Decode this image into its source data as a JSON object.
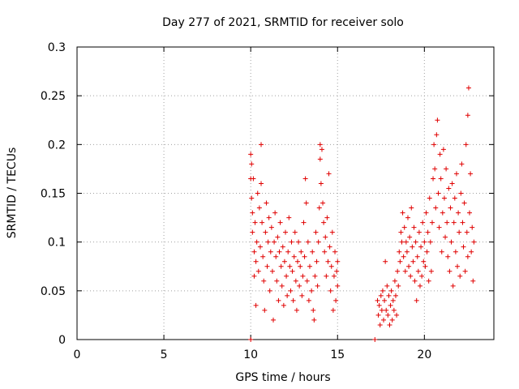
{
  "chart_data": {
    "type": "scatter",
    "title": "Day 277 of 2021, SRMTID for receiver solo",
    "xlabel": "GPS time / hours",
    "ylabel": "SRMTID / TECUs",
    "xlim": [
      0,
      24
    ],
    "ylim": [
      0,
      0.3
    ],
    "x_ticks": [
      0,
      5,
      10,
      15,
      20
    ],
    "x_tick_labels": [
      "0",
      "5",
      "10",
      "15",
      "20"
    ],
    "y_ticks": [
      0,
      0.05,
      0.1,
      0.15,
      0.2,
      0.25,
      0.3
    ],
    "y_tick_labels": [
      "0",
      "0.05",
      "0.1",
      "0.15",
      "0.2",
      "0.25",
      "0.3"
    ],
    "grid": true,
    "marker": "+",
    "series": [
      {
        "name": "SRMTID",
        "color": "#e00000",
        "points": [
          [
            10.0,
            0.0
          ],
          [
            10.0,
            0.19
          ],
          [
            10.0,
            0.165
          ],
          [
            10.05,
            0.18
          ],
          [
            10.05,
            0.145
          ],
          [
            10.1,
            0.13
          ],
          [
            10.1,
            0.11
          ],
          [
            10.15,
            0.165
          ],
          [
            10.2,
            0.09
          ],
          [
            10.2,
            0.065
          ],
          [
            10.25,
            0.12
          ],
          [
            10.3,
            0.08
          ],
          [
            10.3,
            0.035
          ],
          [
            10.35,
            0.1
          ],
          [
            10.4,
            0.15
          ],
          [
            10.45,
            0.07
          ],
          [
            10.5,
            0.135
          ],
          [
            10.55,
            0.095
          ],
          [
            10.6,
            0.2
          ],
          [
            10.6,
            0.16
          ],
          [
            10.65,
            0.12
          ],
          [
            10.7,
            0.085
          ],
          [
            10.75,
            0.06
          ],
          [
            10.8,
            0.03
          ],
          [
            10.85,
            0.11
          ],
          [
            10.9,
            0.14
          ],
          [
            10.95,
            0.075
          ],
          [
            11.0,
            0.1
          ],
          [
            11.05,
            0.125
          ],
          [
            11.1,
            0.05
          ],
          [
            11.15,
            0.09
          ],
          [
            11.2,
            0.115
          ],
          [
            11.25,
            0.07
          ],
          [
            11.3,
            0.02
          ],
          [
            11.35,
            0.1
          ],
          [
            11.4,
            0.13
          ],
          [
            11.45,
            0.085
          ],
          [
            11.5,
            0.06
          ],
          [
            11.55,
            0.105
          ],
          [
            11.6,
            0.04
          ],
          [
            11.65,
            0.09
          ],
          [
            11.7,
            0.12
          ],
          [
            11.75,
            0.075
          ],
          [
            11.8,
            0.055
          ],
          [
            11.85,
            0.095
          ],
          [
            11.9,
            0.035
          ],
          [
            11.95,
            0.08
          ],
          [
            12.0,
            0.11
          ],
          [
            12.05,
            0.065
          ],
          [
            12.1,
            0.045
          ],
          [
            12.15,
            0.09
          ],
          [
            12.2,
            0.125
          ],
          [
            12.25,
            0.075
          ],
          [
            12.3,
            0.05
          ],
          [
            12.35,
            0.1
          ],
          [
            12.4,
            0.07
          ],
          [
            12.45,
            0.04
          ],
          [
            12.5,
            0.085
          ],
          [
            12.55,
            0.11
          ],
          [
            12.6,
            0.06
          ],
          [
            12.65,
            0.03
          ],
          [
            12.7,
            0.08
          ],
          [
            12.75,
            0.1
          ],
          [
            12.8,
            0.055
          ],
          [
            12.85,
            0.075
          ],
          [
            12.9,
            0.09
          ],
          [
            12.95,
            0.045
          ],
          [
            13.0,
            0.065
          ],
          [
            13.05,
            0.12
          ],
          [
            13.1,
            0.085
          ],
          [
            13.15,
            0.165
          ],
          [
            13.2,
            0.14
          ],
          [
            13.25,
            0.06
          ],
          [
            13.3,
            0.1
          ],
          [
            13.35,
            0.04
          ],
          [
            13.4,
            0.075
          ],
          [
            13.5,
            0.05
          ],
          [
            13.55,
            0.09
          ],
          [
            13.6,
            0.03
          ],
          [
            13.65,
            0.02
          ],
          [
            13.7,
            0.065
          ],
          [
            13.75,
            0.11
          ],
          [
            13.8,
            0.08
          ],
          [
            13.85,
            0.055
          ],
          [
            13.9,
            0.1
          ],
          [
            13.95,
            0.135
          ],
          [
            14.0,
            0.185
          ],
          [
            14.0,
            0.2
          ],
          [
            14.05,
            0.16
          ],
          [
            14.1,
            0.195
          ],
          [
            14.15,
            0.14
          ],
          [
            14.2,
            0.12
          ],
          [
            14.25,
            0.09
          ],
          [
            14.3,
            0.105
          ],
          [
            14.35,
            0.065
          ],
          [
            14.4,
            0.125
          ],
          [
            14.45,
            0.08
          ],
          [
            14.5,
            0.17
          ],
          [
            14.55,
            0.095
          ],
          [
            14.6,
            0.05
          ],
          [
            14.65,
            0.075
          ],
          [
            14.7,
            0.11
          ],
          [
            14.75,
            0.03
          ],
          [
            14.8,
            0.065
          ],
          [
            14.85,
            0.09
          ],
          [
            14.9,
            0.04
          ],
          [
            14.95,
            0.07
          ],
          [
            15.0,
            0.08
          ],
          [
            15.0,
            0.055
          ],
          [
            17.15,
            0.0
          ],
          [
            17.3,
            0.04
          ],
          [
            17.35,
            0.025
          ],
          [
            17.4,
            0.035
          ],
          [
            17.45,
            0.015
          ],
          [
            17.5,
            0.045
          ],
          [
            17.55,
            0.03
          ],
          [
            17.6,
            0.05
          ],
          [
            17.65,
            0.02
          ],
          [
            17.7,
            0.04
          ],
          [
            17.75,
            0.08
          ],
          [
            17.8,
            0.03
          ],
          [
            17.85,
            0.055
          ],
          [
            17.9,
            0.025
          ],
          [
            17.95,
            0.045
          ],
          [
            18.0,
            0.015
          ],
          [
            18.05,
            0.035
          ],
          [
            18.1,
            0.05
          ],
          [
            18.15,
            0.02
          ],
          [
            18.2,
            0.04
          ],
          [
            18.25,
            0.03
          ],
          [
            18.3,
            0.06
          ],
          [
            18.35,
            0.045
          ],
          [
            18.4,
            0.025
          ],
          [
            18.45,
            0.07
          ],
          [
            18.5,
            0.055
          ],
          [
            18.55,
            0.09
          ],
          [
            18.6,
            0.08
          ],
          [
            18.65,
            0.11
          ],
          [
            18.7,
            0.1
          ],
          [
            18.75,
            0.13
          ],
          [
            18.8,
            0.085
          ],
          [
            18.85,
            0.115
          ],
          [
            18.9,
            0.07
          ],
          [
            18.95,
            0.1
          ],
          [
            19.0,
            0.09
          ],
          [
            19.05,
            0.125
          ],
          [
            19.1,
            0.075
          ],
          [
            19.15,
            0.105
          ],
          [
            19.2,
            0.065
          ],
          [
            19.25,
            0.135
          ],
          [
            19.3,
            0.095
          ],
          [
            19.35,
            0.08
          ],
          [
            19.4,
            0.115
          ],
          [
            19.45,
            0.06
          ],
          [
            19.5,
            0.1
          ],
          [
            19.55,
            0.04
          ],
          [
            19.6,
            0.085
          ],
          [
            19.65,
            0.07
          ],
          [
            19.7,
            0.11
          ],
          [
            19.75,
            0.055
          ],
          [
            19.8,
            0.095
          ],
          [
            19.85,
            0.065
          ],
          [
            19.9,
            0.12
          ],
          [
            19.95,
            0.08
          ],
          [
            20.0,
            0.1
          ],
          [
            20.05,
            0.075
          ],
          [
            20.1,
            0.13
          ],
          [
            20.15,
            0.09
          ],
          [
            20.2,
            0.11
          ],
          [
            20.25,
            0.06
          ],
          [
            20.3,
            0.145
          ],
          [
            20.35,
            0.1
          ],
          [
            20.4,
            0.07
          ],
          [
            20.45,
            0.12
          ],
          [
            20.5,
            0.165
          ],
          [
            20.55,
            0.2
          ],
          [
            20.6,
            0.175
          ],
          [
            20.65,
            0.135
          ],
          [
            20.7,
            0.21
          ],
          [
            20.75,
            0.225
          ],
          [
            20.8,
            0.15
          ],
          [
            20.85,
            0.115
          ],
          [
            20.9,
            0.19
          ],
          [
            20.95,
            0.165
          ],
          [
            21.0,
            0.09
          ],
          [
            21.05,
            0.13
          ],
          [
            21.1,
            0.195
          ],
          [
            21.15,
            0.145
          ],
          [
            21.2,
            0.105
          ],
          [
            21.25,
            0.175
          ],
          [
            21.3,
            0.12
          ],
          [
            21.35,
            0.085
          ],
          [
            21.4,
            0.155
          ],
          [
            21.45,
            0.07
          ],
          [
            21.5,
            0.135
          ],
          [
            21.55,
            0.1
          ],
          [
            21.6,
            0.16
          ],
          [
            21.65,
            0.055
          ],
          [
            21.7,
            0.12
          ],
          [
            21.75,
            0.145
          ],
          [
            21.8,
            0.09
          ],
          [
            21.85,
            0.17
          ],
          [
            21.9,
            0.075
          ],
          [
            21.95,
            0.13
          ],
          [
            22.0,
            0.11
          ],
          [
            22.05,
            0.065
          ],
          [
            22.1,
            0.15
          ],
          [
            22.15,
            0.18
          ],
          [
            22.2,
            0.12
          ],
          [
            22.25,
            0.095
          ],
          [
            22.3,
            0.14
          ],
          [
            22.35,
            0.07
          ],
          [
            22.4,
            0.2
          ],
          [
            22.45,
            0.11
          ],
          [
            22.5,
            0.085
          ],
          [
            22.5,
            0.23
          ],
          [
            22.55,
            0.258
          ],
          [
            22.6,
            0.13
          ],
          [
            22.65,
            0.17
          ],
          [
            22.7,
            0.09
          ],
          [
            22.75,
            0.115
          ],
          [
            22.8,
            0.06
          ],
          [
            22.85,
            0.1
          ]
        ]
      }
    ]
  }
}
